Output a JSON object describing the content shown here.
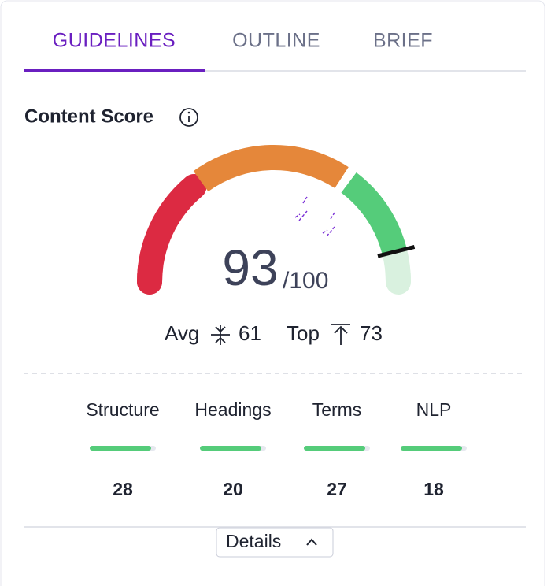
{
  "tabs": [
    "GUIDELINES",
    "OUTLINE",
    "BRIEF"
  ],
  "section_title": "Content Score",
  "score": {
    "value": "93",
    "max": "/100"
  },
  "avg": {
    "label": "Avg",
    "value": "61"
  },
  "top": {
    "label": "Top",
    "value": "73"
  },
  "metrics": [
    {
      "label": "Structure",
      "value": "28"
    },
    {
      "label": "Headings",
      "value": "20"
    },
    {
      "label": "Terms",
      "value": "27"
    },
    {
      "label": "NLP",
      "value": "18"
    }
  ],
  "details_button": "Details"
}
